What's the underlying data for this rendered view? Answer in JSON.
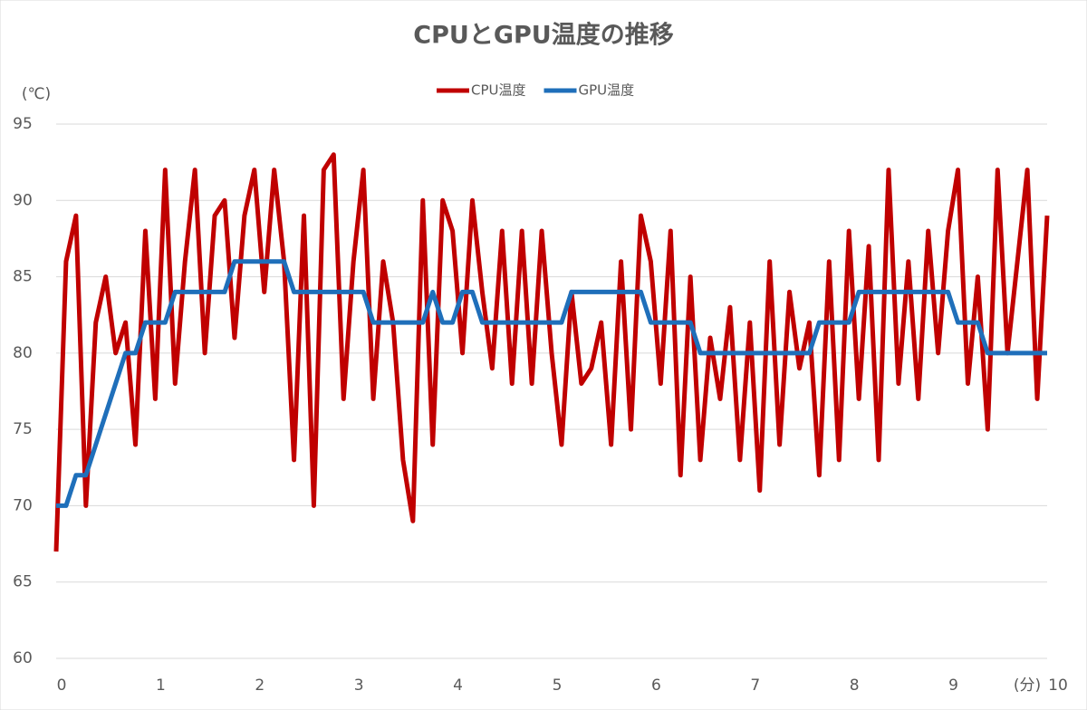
{
  "chart_data": {
    "type": "line",
    "title": "CPUとGPU温度の推移",
    "y_label": "(℃)",
    "x_label": "(分)",
    "x": [
      0,
      0.1,
      0.2,
      0.3,
      0.4,
      0.5,
      0.6,
      0.7,
      0.8,
      0.9,
      1,
      1.1,
      1.2,
      1.3,
      1.4,
      1.5,
      1.6,
      1.7,
      1.8,
      1.9,
      2,
      2.1,
      2.2,
      2.3,
      2.4,
      2.5,
      2.6,
      2.7,
      2.8,
      2.9,
      3,
      3.1,
      3.2,
      3.3,
      3.4,
      3.5,
      3.6,
      3.7,
      3.8,
      3.9,
      4,
      4.1,
      4.2,
      4.3,
      4.4,
      4.5,
      4.6,
      4.7,
      4.8,
      4.9,
      5,
      5.1,
      5.2,
      5.3,
      5.4,
      5.5,
      5.6,
      5.7,
      5.8,
      5.9,
      6,
      6.1,
      6.2,
      6.3,
      6.4,
      6.5,
      6.6,
      6.7,
      6.8,
      6.9,
      7,
      7.1,
      7.2,
      7.3,
      7.4,
      7.5,
      7.6,
      7.7,
      7.8,
      7.9,
      8,
      8.1,
      8.2,
      8.3,
      8.4,
      8.5,
      8.6,
      8.7,
      8.8,
      8.9,
      9,
      9.1,
      9.2,
      9.3,
      9.4,
      9.5,
      9.6,
      9.7,
      9.8,
      9.9,
      10
    ],
    "series": [
      {
        "name": "CPU温度",
        "color": "#c00000",
        "values": [
          67,
          86,
          89,
          70,
          82,
          85,
          80,
          82,
          74,
          88,
          77,
          92,
          78,
          86,
          92,
          80,
          89,
          90,
          81,
          89,
          92,
          84,
          92,
          86,
          73,
          89,
          70,
          92,
          93,
          77,
          86,
          92,
          77,
          86,
          82,
          73,
          69,
          90,
          74,
          90,
          88,
          80,
          90,
          84,
          79,
          88,
          78,
          88,
          78,
          88,
          80,
          74,
          84,
          78,
          79,
          82,
          74,
          86,
          75,
          89,
          86,
          78,
          88,
          72,
          85,
          73,
          81,
          77,
          83,
          73,
          82,
          71,
          86,
          74,
          84,
          79,
          82,
          72,
          86,
          73,
          88,
          77,
          87,
          73,
          92,
          78,
          86,
          77,
          88,
          80,
          88,
          92,
          78,
          85,
          75,
          92,
          80,
          86,
          92,
          77,
          89
        ]
      },
      {
        "name": "GPU温度",
        "color": "#1f6fba",
        "values": [
          70,
          70,
          72,
          72,
          74,
          76,
          78,
          80,
          80,
          82,
          82,
          82,
          84,
          84,
          84,
          84,
          84,
          84,
          86,
          86,
          86,
          86,
          86,
          86,
          84,
          84,
          84,
          84,
          84,
          84,
          84,
          84,
          82,
          82,
          82,
          82,
          82,
          82,
          84,
          82,
          82,
          84,
          84,
          82,
          82,
          82,
          82,
          82,
          82,
          82,
          82,
          82,
          84,
          84,
          84,
          84,
          84,
          84,
          84,
          84,
          82,
          82,
          82,
          82,
          82,
          80,
          80,
          80,
          80,
          80,
          80,
          80,
          80,
          80,
          80,
          80,
          80,
          82,
          82,
          82,
          82,
          84,
          84,
          84,
          84,
          84,
          84,
          84,
          84,
          84,
          84,
          82,
          82,
          82,
          80,
          80,
          80,
          80,
          80,
          80,
          80
        ]
      }
    ],
    "xlim": [
      0,
      10
    ],
    "xticks": [
      0,
      1,
      2,
      3,
      4,
      5,
      6,
      7,
      8,
      9,
      10
    ],
    "ylim": [
      60,
      95
    ],
    "yticks": [
      60,
      65,
      70,
      75,
      80,
      85,
      90,
      95
    ],
    "grid": true
  }
}
